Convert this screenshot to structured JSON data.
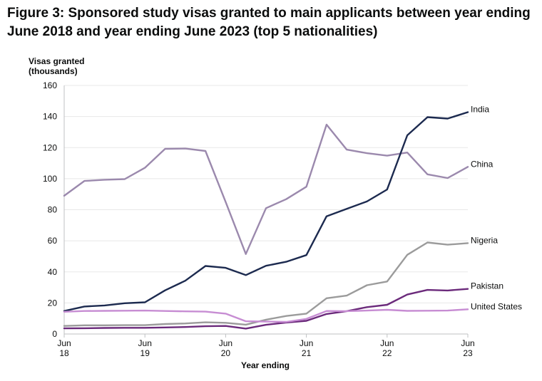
{
  "chart_data": {
    "type": "line",
    "title": "Figure 3: Sponsored study visas granted to main applicants between year ending June 2018 and year ending June 2023 (top 5 nationalities)",
    "ylabel_line1": "Visas granted",
    "ylabel_line2": "(thousands)",
    "xlabel": "Year ending",
    "ylim": [
      0,
      160
    ],
    "yticks": [
      0,
      20,
      40,
      60,
      80,
      100,
      120,
      140,
      160
    ],
    "xticks": [
      {
        "index": 0,
        "line1": "Jun",
        "line2": "18"
      },
      {
        "index": 4,
        "line1": "Jun",
        "line2": "19"
      },
      {
        "index": 8,
        "line1": "Jun",
        "line2": "20"
      },
      {
        "index": 12,
        "line1": "Jun",
        "line2": "21"
      },
      {
        "index": 16,
        "line1": "Jun",
        "line2": "22"
      },
      {
        "index": 20,
        "line1": "Jun",
        "line2": "23"
      }
    ],
    "grid": true,
    "series": [
      {
        "name": "China",
        "color": "#9b89ad",
        "values": [
          89,
          98.5,
          99.3,
          99.7,
          107,
          119.2,
          119.4,
          117.8,
          85,
          51.5,
          81,
          86.8,
          94.8,
          134.8,
          118.7,
          116.4,
          114.8,
          116.8,
          102.8,
          100.4,
          107.6
        ]
      },
      {
        "name": "India",
        "color": "#1c2a4f",
        "values": [
          14.8,
          17.7,
          18.4,
          19.8,
          20.4,
          28.1,
          34.3,
          43.8,
          42.6,
          37.9,
          43.9,
          46.5,
          50.8,
          75.8,
          80.6,
          85.3,
          93,
          127.9,
          139.6,
          138.7,
          142.8
        ]
      },
      {
        "name": "Nigeria",
        "color": "#9b9b9b",
        "values": [
          5.2,
          5.6,
          5.6,
          5.7,
          5.7,
          6.4,
          6.8,
          7.5,
          7.2,
          6,
          9.2,
          11.6,
          13.1,
          23,
          24.7,
          31.4,
          33.8,
          51,
          58.9,
          57.5,
          58.5
        ]
      },
      {
        "name": "Pakistan",
        "color": "#6b2a7b",
        "values": [
          3.6,
          3.7,
          3.9,
          4,
          4,
          4.2,
          4.5,
          5,
          5.2,
          3.5,
          5.9,
          7.4,
          8.5,
          12.9,
          14.7,
          17.3,
          18.8,
          25.4,
          28.4,
          28,
          29
        ]
      },
      {
        "name": "United States",
        "color": "#c78dd3",
        "values": [
          14.3,
          14.8,
          14.9,
          15,
          15.1,
          14.8,
          14.6,
          14.4,
          13.1,
          8.2,
          8,
          7.8,
          9.7,
          14.8,
          14.7,
          15.1,
          15.6,
          14.9,
          15,
          15.1,
          15.9
        ]
      }
    ]
  }
}
